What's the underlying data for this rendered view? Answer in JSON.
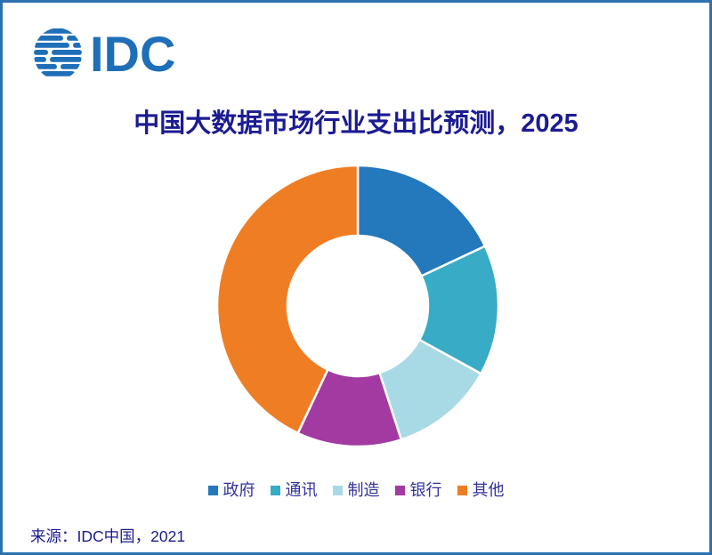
{
  "frame": {
    "border_color": "#2B72AE",
    "background_color": "#FFFFFF"
  },
  "logo": {
    "text": "IDC",
    "color": "#1E6FB8",
    "icon": "globe-stripes-icon"
  },
  "title": {
    "text": "中国大数据市场行业支出比预测，2025",
    "color": "#1B1B92"
  },
  "chart_data": {
    "type": "pie",
    "subtype": "donut",
    "title": "中国大数据市场行业支出比预测，2025",
    "categories": [
      "政府",
      "通讯",
      "制造",
      "银行",
      "其他"
    ],
    "values": [
      18,
      15,
      12,
      12,
      43
    ],
    "unit": "percent_estimated_from_arc_angles",
    "colors": [
      "#2478BC",
      "#38ABC7",
      "#A8DAE6",
      "#A23AA2",
      "#EF7D24"
    ],
    "start_angle_deg": 0,
    "direction": "clockwise",
    "inner_radius_ratio": 0.5,
    "segment_gap_color": "#FFFFFF",
    "legend_position": "bottom",
    "legend_text_color": "#32329B",
    "data_labels": "none"
  },
  "source": {
    "text": "来源：IDC中国，2021",
    "color": "#1B1B8E"
  }
}
